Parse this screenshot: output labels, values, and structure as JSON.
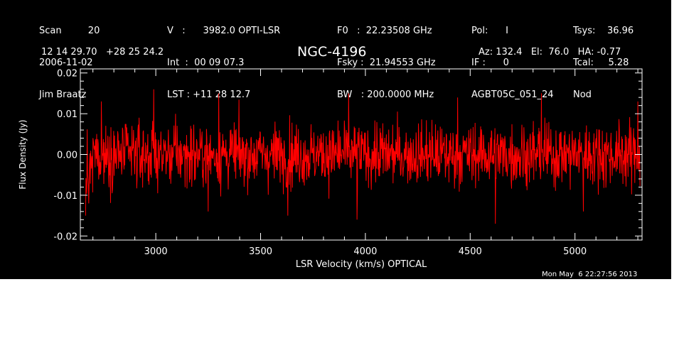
{
  "header": {
    "col1": [
      "Scan         20",
      "2006-11-02",
      "Jim Braatz"
    ],
    "col2": [
      "V   :      3982.0 OPTI-LSR",
      "Int  :  00 09 07.3",
      "LST : +11 28 12.7"
    ],
    "col3": [
      "F0   :  22.23508 GHz",
      "Fsky :  21.94553 GHz",
      "BW   : 200.0000 MHz"
    ],
    "col4": [
      "Pol:      I",
      "IF :      0",
      "AGBT05C_051_24"
    ],
    "col5": [
      "Tsys:    36.96",
      "Tcal:     5.28",
      "Nod"
    ],
    "coords": "12 14 29.70   +28 25 24.2",
    "source": "NGC-4196",
    "azel": "Az: 132.4   El:  76.0   HA: -0.77",
    "timestamp": "Mon May  6 22:27:56 2013"
  },
  "chart_data": {
    "type": "line",
    "title": "NGC-4196",
    "xlabel": "LSR Velocity (km/s) OPTICAL",
    "ylabel": "Flux Density (Jy)",
    "xlim": [
      2640,
      5320
    ],
    "ylim": [
      -0.021,
      0.021
    ],
    "xticks": [
      3000,
      3500,
      4000,
      4500,
      5000
    ],
    "yticks": [
      -0.02,
      -0.01,
      0.0,
      0.01,
      0.02
    ],
    "xtick_labels": [
      "3000",
      "3500",
      "4000",
      "4500",
      "5000"
    ],
    "ytick_labels": [
      "-0.02",
      "-0.01",
      "0.00",
      "0.01",
      "0.02"
    ],
    "grid": false,
    "series": [
      {
        "color": "#ff0000",
        "x_start": 2665,
        "x_end": 5310,
        "rms": 0.0045,
        "description_points": [
          {
            "x": 2665,
            "y": -0.015
          },
          {
            "x": 2680,
            "y": -0.012
          },
          {
            "x": 2700,
            "y": 0.004
          },
          {
            "x": 2740,
            "y": 0.013
          },
          {
            "x": 2990,
            "y": 0.016
          },
          {
            "x": 3250,
            "y": -0.014
          },
          {
            "x": 3300,
            "y": 0.015
          },
          {
            "x": 3630,
            "y": -0.015
          },
          {
            "x": 3920,
            "y": 0.015
          },
          {
            "x": 3960,
            "y": -0.016
          },
          {
            "x": 4440,
            "y": 0.014
          },
          {
            "x": 4620,
            "y": -0.017
          },
          {
            "x": 4840,
            "y": 0.015
          },
          {
            "x": 5040,
            "y": -0.014
          },
          {
            "x": 5300,
            "y": 0.013
          }
        ]
      }
    ]
  }
}
